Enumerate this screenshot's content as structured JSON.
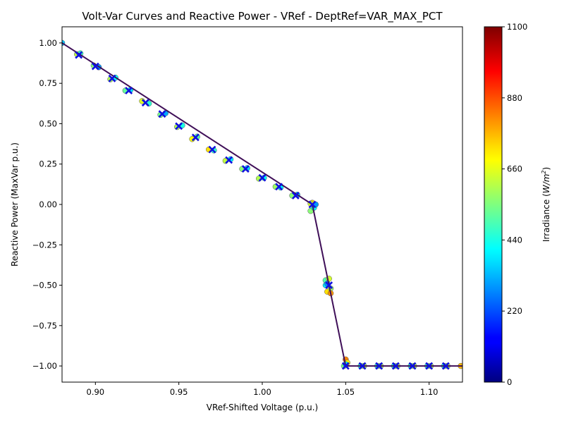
{
  "chart_data": {
    "type": "scatter",
    "title": "Volt-Var Curves and Reactive Power - VRef - DeptRef=VAR_MAX_PCT",
    "xlabel": "VRef-Shifted Voltage (p.u.)",
    "ylabel": "Reactive Power (MaxVar p.u.)",
    "xlim": [
      0.88,
      1.12
    ],
    "ylim": [
      -1.1,
      1.1
    ],
    "x_ticks": [
      0.9,
      0.95,
      1.0,
      1.05,
      1.1
    ],
    "x_tick_labels": [
      "0.90",
      "0.95",
      "1.00",
      "1.05",
      "1.10"
    ],
    "y_ticks": [
      1.0,
      0.75,
      0.5,
      0.25,
      0.0,
      -0.25,
      -0.5,
      -0.75,
      -1.0
    ],
    "y_tick_labels": [
      "1.00",
      "0.75",
      "0.50",
      "0.25",
      "0.00",
      "−0.25",
      "−0.50",
      "−0.75",
      "−1.00"
    ],
    "grid": false,
    "colorbar": {
      "label": "Irradiance",
      "unit_base": "W/m",
      "unit_sup": "2",
      "min": 0,
      "max": 1100,
      "ticks": [
        0,
        220,
        440,
        660,
        880,
        1100
      ],
      "tick_labels": [
        "0",
        "220",
        "440",
        "660",
        "880",
        "1100"
      ],
      "colormap": "jet"
    },
    "curve": {
      "color": "#3f0f58",
      "points": [
        [
          0.88,
          1.0
        ],
        [
          1.03,
          0.0
        ],
        [
          1.05,
          -1.0
        ],
        [
          1.12,
          -1.0
        ]
      ]
    },
    "targets": {
      "marker": "x",
      "color": "#1010e0",
      "x": [
        0.89,
        0.9,
        0.91,
        0.92,
        0.93,
        0.94,
        0.95,
        0.96,
        0.97,
        0.98,
        0.99,
        1.0,
        1.01,
        1.02,
        1.03,
        1.04,
        1.05,
        1.06,
        1.07,
        1.08,
        1.09,
        1.1,
        1.11
      ],
      "y": [
        0.925,
        0.855,
        0.78,
        0.705,
        0.63,
        0.56,
        0.485,
        0.415,
        0.34,
        0.275,
        0.22,
        0.165,
        0.11,
        0.055,
        0.0,
        -0.5,
        -1.0,
        -1.0,
        -1.0,
        -1.0,
        -1.0,
        -1.0,
        -1.0
      ]
    },
    "measurements": {
      "marker": "o",
      "points": [
        [
          0.88,
          1.0,
          350
        ],
        [
          0.889,
          0.93,
          620
        ],
        [
          0.891,
          0.935,
          480
        ],
        [
          0.899,
          0.86,
          560
        ],
        [
          0.902,
          0.85,
          300
        ],
        [
          0.909,
          0.775,
          600
        ],
        [
          0.912,
          0.785,
          420
        ],
        [
          0.918,
          0.705,
          520
        ],
        [
          0.921,
          0.71,
          380
        ],
        [
          0.928,
          0.64,
          650
        ],
        [
          0.932,
          0.625,
          460
        ],
        [
          0.939,
          0.555,
          540
        ],
        [
          0.942,
          0.565,
          320
        ],
        [
          0.949,
          0.48,
          600
        ],
        [
          0.952,
          0.49,
          440
        ],
        [
          0.958,
          0.405,
          680
        ],
        [
          0.961,
          0.42,
          500
        ],
        [
          0.968,
          0.34,
          720
        ],
        [
          0.971,
          0.335,
          460
        ],
        [
          0.978,
          0.27,
          620
        ],
        [
          0.981,
          0.28,
          400
        ],
        [
          0.988,
          0.22,
          560
        ],
        [
          0.991,
          0.225,
          380
        ],
        [
          0.998,
          0.16,
          600
        ],
        [
          1.001,
          0.165,
          420
        ],
        [
          1.008,
          0.11,
          580
        ],
        [
          1.011,
          0.105,
          400
        ],
        [
          1.018,
          0.055,
          560
        ],
        [
          1.021,
          0.06,
          360
        ],
        [
          1.029,
          -0.04,
          560
        ],
        [
          1.03,
          0.01,
          720
        ],
        [
          1.031,
          -0.02,
          420
        ],
        [
          1.032,
          0.0,
          300
        ],
        [
          1.029,
          0.005,
          640
        ],
        [
          1.038,
          -0.47,
          500
        ],
        [
          1.039,
          -0.54,
          720
        ],
        [
          1.04,
          -0.46,
          640
        ],
        [
          1.041,
          -0.52,
          580
        ],
        [
          1.038,
          -0.5,
          380
        ],
        [
          1.041,
          -0.55,
          800
        ],
        [
          1.039,
          -0.49,
          300
        ],
        [
          1.05,
          -0.96,
          820
        ],
        [
          1.051,
          -0.98,
          700
        ],
        [
          1.049,
          -1.0,
          540
        ],
        [
          1.05,
          -0.99,
          400
        ],
        [
          1.059,
          -1.0,
          450
        ],
        [
          1.061,
          -1.0,
          600
        ],
        [
          1.069,
          -1.0,
          450
        ],
        [
          1.071,
          -1.0,
          600
        ],
        [
          1.079,
          -1.0,
          450
        ],
        [
          1.081,
          -1.0,
          600
        ],
        [
          1.089,
          -1.0,
          450
        ],
        [
          1.091,
          -1.0,
          600
        ],
        [
          1.099,
          -1.0,
          450
        ],
        [
          1.101,
          -1.0,
          600
        ],
        [
          1.109,
          -1.0,
          450
        ],
        [
          1.111,
          -1.0,
          600
        ],
        [
          1.119,
          -1.0,
          760
        ]
      ]
    }
  }
}
